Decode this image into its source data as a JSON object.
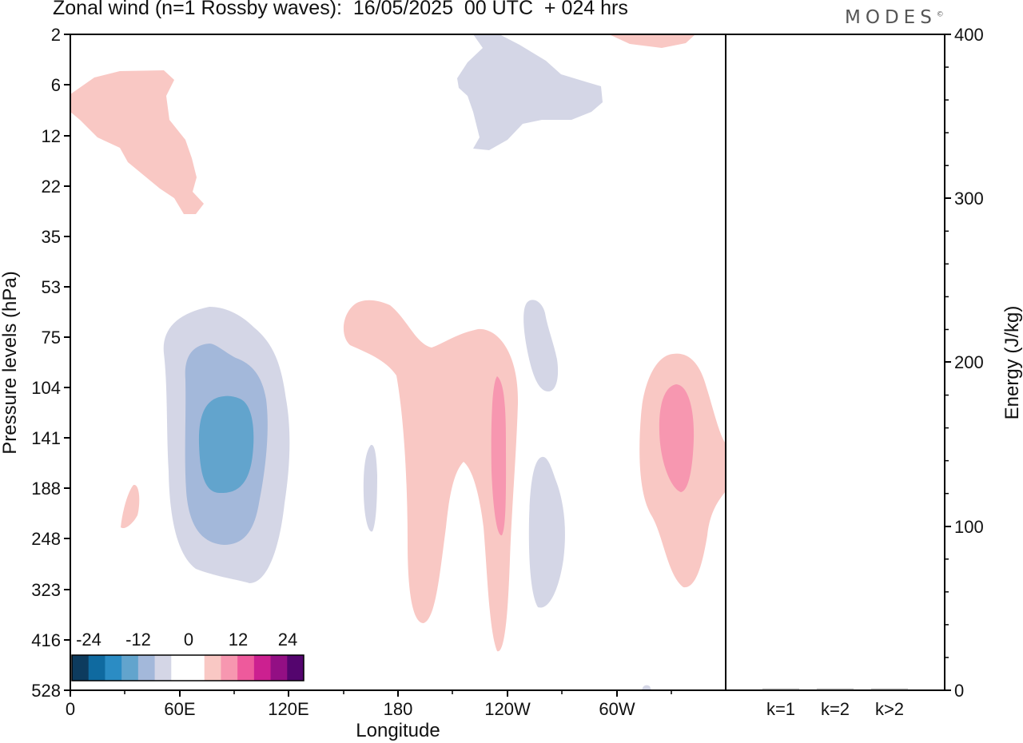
{
  "title": "Zonal wind (n=1 Rossby waves):  16/05/2025  00 UTC  + 024 hrs",
  "logo": "MODES",
  "chart_data": [
    {
      "type": "heatmap",
      "xlabel": "Longitude",
      "ylabel": "Pressure levels (hPa)",
      "x_ticks": [
        "0",
        "60E",
        "120E",
        "180",
        "120W",
        "60W"
      ],
      "y_ticks": [
        "2",
        "6",
        "12",
        "22",
        "35",
        "53",
        "75",
        "104",
        "141",
        "188",
        "248",
        "323",
        "416",
        "528"
      ],
      "colorbar": {
        "tick_labels": [
          "-24",
          "-12",
          "0",
          "12",
          "24"
        ],
        "colors": [
          "#0d3b5e",
          "#0f6aa0",
          "#2b8cc4",
          "#62a4cd",
          "#a3b8da",
          "#d4d6e6",
          "#ffffff",
          "#ffffff",
          "#f9c8c4",
          "#f797b0",
          "#ee5a9c",
          "#cc2090",
          "#930f84",
          "#54056e"
        ]
      },
      "features": [
        {
          "sign": "positive",
          "level": 4,
          "longitude_center": 25,
          "pressure_top_hPa": 6,
          "pressure_bottom_hPa": 25
        },
        {
          "sign": "negative",
          "level": 1,
          "longitude_center": 225,
          "pressure_top_hPa": 2,
          "pressure_bottom_hPa": 12
        },
        {
          "sign": "positive",
          "level": 4,
          "longitude_center": 310,
          "pressure_top_hPa": 2,
          "pressure_bottom_hPa": 3
        },
        {
          "sign": "negative",
          "level": 3,
          "longitude_center": 90,
          "pressure_top_hPa": 70,
          "pressure_bottom_hPa": 323
        },
        {
          "sign": "positive",
          "level": 4,
          "longitude_center": 205,
          "pressure_top_hPa": 65,
          "pressure_bottom_hPa": 416
        },
        {
          "sign": "positive",
          "level": 7,
          "longitude_center": 235,
          "pressure_top_hPa": 115,
          "pressure_bottom_hPa": 248
        },
        {
          "sign": "positive",
          "level": 7,
          "longitude_center": 332,
          "pressure_top_hPa": 112,
          "pressure_bottom_hPa": 188
        },
        {
          "sign": "positive",
          "level": 4,
          "longitude_center": 330,
          "pressure_top_hPa": 85,
          "pressure_bottom_hPa": 323
        }
      ]
    },
    {
      "type": "bar",
      "categories": [
        "k=1",
        "k=2",
        "k>2"
      ],
      "values": [
        0.5,
        0.5,
        0.5
      ],
      "ylabel": "Energy (J/kg)",
      "ylim": [
        0,
        400
      ],
      "y_ticks": [
        "0",
        "100",
        "200",
        "300",
        "400"
      ]
    }
  ]
}
